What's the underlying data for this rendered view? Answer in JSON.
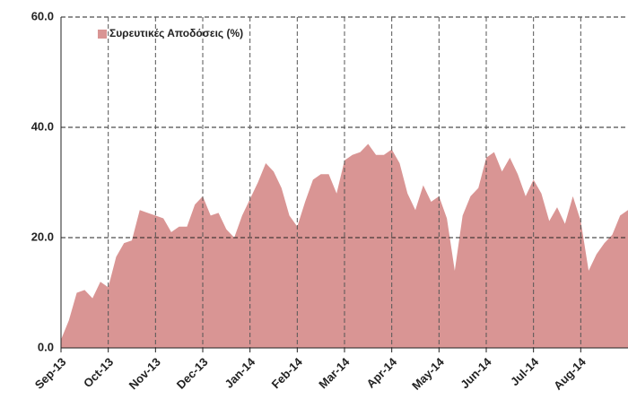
{
  "chart_data": {
    "type": "area",
    "categories": [
      "Sep-13",
      null,
      null,
      null,
      null,
      null,
      "Oct-13",
      null,
      null,
      null,
      null,
      null,
      "Nov-13",
      null,
      null,
      null,
      null,
      null,
      "Dec-13",
      null,
      null,
      null,
      null,
      null,
      "Jan-14",
      null,
      null,
      null,
      null,
      null,
      "Feb-14",
      null,
      null,
      null,
      null,
      null,
      "Mar-14",
      null,
      null,
      null,
      null,
      null,
      "Apr-14",
      null,
      null,
      null,
      null,
      null,
      "May-14",
      null,
      null,
      null,
      null,
      null,
      "Jun-14",
      null,
      null,
      null,
      null,
      null,
      "Jul-14",
      null,
      null,
      null,
      null,
      null,
      "Aug-14",
      null,
      null,
      null,
      null,
      null,
      null
    ],
    "series": [
      {
        "name": "Συρευτικές Αποδόσεις (%)",
        "color": "#d99594",
        "values": [
          1.5,
          5,
          10,
          10.5,
          9,
          12,
          11,
          16.5,
          19,
          19.5,
          25,
          24.5,
          24,
          23.5,
          21,
          22,
          22,
          26,
          27.5,
          24,
          24.5,
          21.5,
          20,
          24,
          27,
          30,
          33.5,
          32,
          29,
          24,
          22,
          26.5,
          30.5,
          31.5,
          31.5,
          28,
          34,
          35,
          35.5,
          37,
          35,
          35,
          36,
          33.5,
          28,
          25,
          29.5,
          26.5,
          27.5,
          23.5,
          14,
          24,
          27.5,
          29,
          34.5,
          35.5,
          32,
          34.5,
          31.5,
          27.5,
          30.5,
          28,
          23,
          25.5,
          22.5,
          27.5,
          23,
          14,
          17,
          19,
          20.5,
          24,
          25
        ]
      }
    ],
    "ylim": [
      0,
      60
    ],
    "yticks": [
      {
        "value": 0,
        "label": "0.0"
      },
      {
        "value": 20,
        "label": "20.0"
      },
      {
        "value": 40,
        "label": "40.0"
      },
      {
        "value": 60,
        "label": "60.0"
      }
    ],
    "grid": true,
    "legend": "upper left"
  }
}
